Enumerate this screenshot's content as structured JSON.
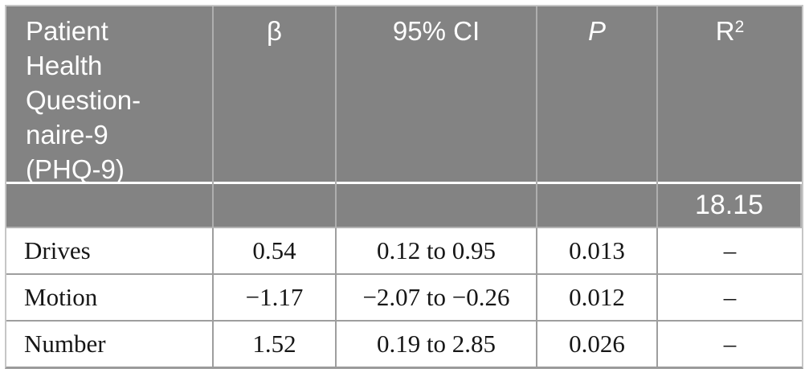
{
  "colors": {
    "header_bg": "#838383",
    "header_text": "#ffffff",
    "body_text": "#161616",
    "grid_line": "#9e9e9e",
    "header_grid_line": "#aeaeae",
    "outer_border": "#c6c6c6"
  },
  "table": {
    "header": {
      "construct": "Patient\nHealth\nQuestion-\nnaire-9\n(PHQ-9)",
      "beta": "β",
      "ci": "95% CI",
      "p": "P",
      "r2_base": "R",
      "r2_sup": "2"
    },
    "summary": {
      "r2_value": "18.15"
    },
    "rows": [
      {
        "label": "Drives",
        "beta": "0.54",
        "ci": "0.12 to 0.95",
        "p": "0.013",
        "r2": "–"
      },
      {
        "label": "Motion",
        "beta": "−1.17",
        "ci": "−2.07 to −0.26",
        "p": "0.012",
        "r2": "–"
      },
      {
        "label": "Number",
        "beta": "1.52",
        "ci": "0.19 to 2.85",
        "p": "0.026",
        "r2": "–"
      }
    ]
  },
  "chart_data": {
    "type": "table",
    "title": "",
    "columns": [
      "Patient Health Questionnaire-9 (PHQ-9)",
      "β",
      "95% CI",
      "P",
      "R²"
    ],
    "rows": [
      [
        "",
        "",
        "",
        "",
        "18.15"
      ],
      [
        "Drives",
        "0.54",
        "0.12 to 0.95",
        "0.013",
        "–"
      ],
      [
        "Motion",
        "−1.17",
        "−2.07 to −0.26",
        "0.012",
        "–"
      ],
      [
        "Number",
        "1.52",
        "0.19 to 2.85",
        "0.026",
        "–"
      ]
    ]
  }
}
